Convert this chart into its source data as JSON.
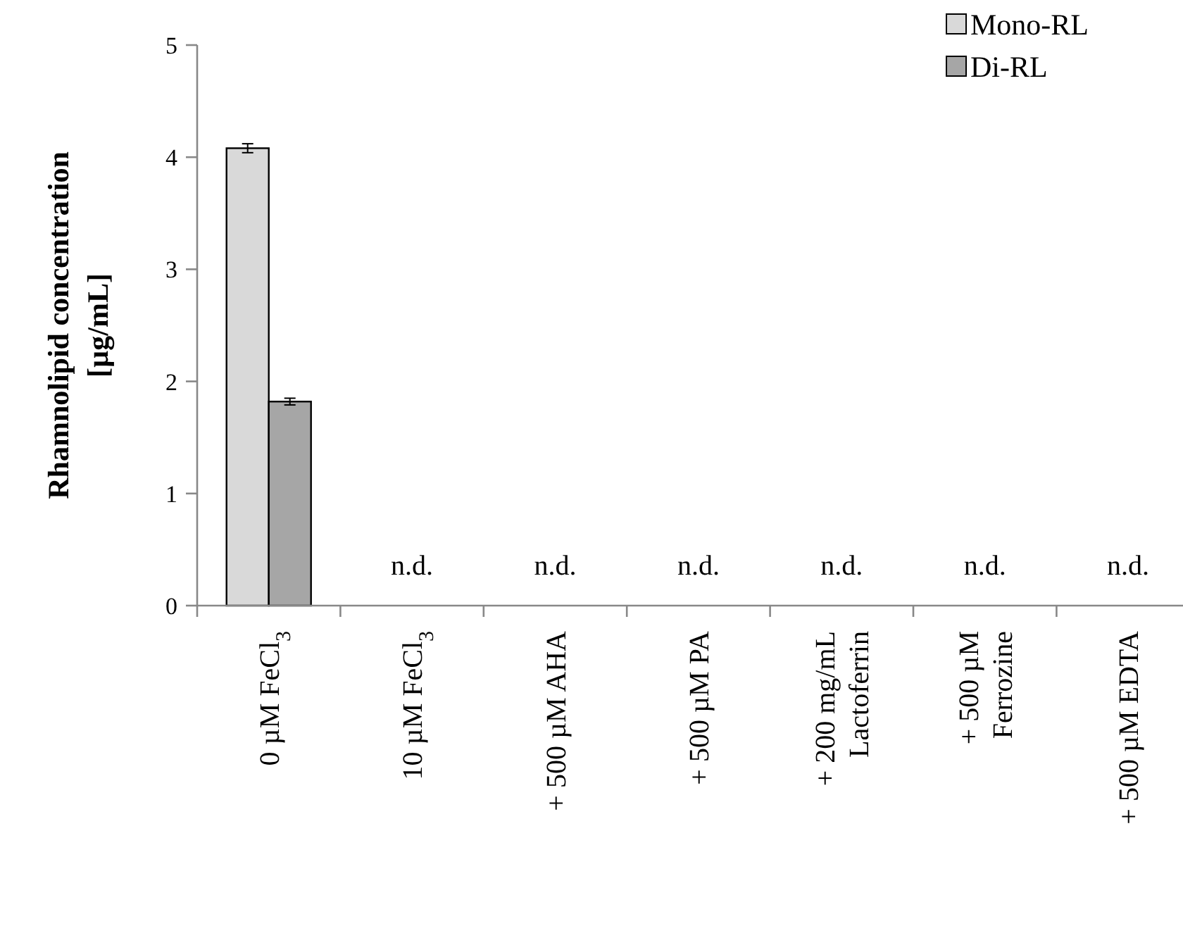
{
  "chart_data": {
    "type": "bar",
    "ylabel": "Rhamnolipid concentration\n[µg/mL]",
    "categories": [
      "0 µM FeCl$_{3}$",
      "10 µM FeCl$_{3}$",
      "+ 500 µM AHA",
      "+ 500 µM PA",
      "+ 200 mg/mL\nLactoferrin",
      "+ 500 µM\nFerrozine",
      "+ 500 µM EDTA"
    ],
    "series": [
      {
        "name": "Mono-RL",
        "color": "#d9d9d9",
        "values": [
          4.08,
          null,
          null,
          null,
          null,
          null,
          null
        ],
        "errors": [
          0.04,
          null,
          null,
          null,
          null,
          null,
          null
        ],
        "value_labels": [
          null,
          "n.d.",
          "n.d.",
          "n.d.",
          "n.d.",
          "n.d.",
          "n.d."
        ]
      },
      {
        "name": "Di-RL",
        "color": "#a6a6a6",
        "values": [
          1.82,
          null,
          null,
          null,
          null,
          null,
          null
        ],
        "errors": [
          0.03,
          null,
          null,
          null,
          null,
          null,
          null
        ]
      }
    ],
    "ylim": [
      0,
      5
    ],
    "yticks": [
      0,
      1,
      2,
      3,
      4,
      5
    ],
    "grid": false,
    "legend": "top right"
  }
}
